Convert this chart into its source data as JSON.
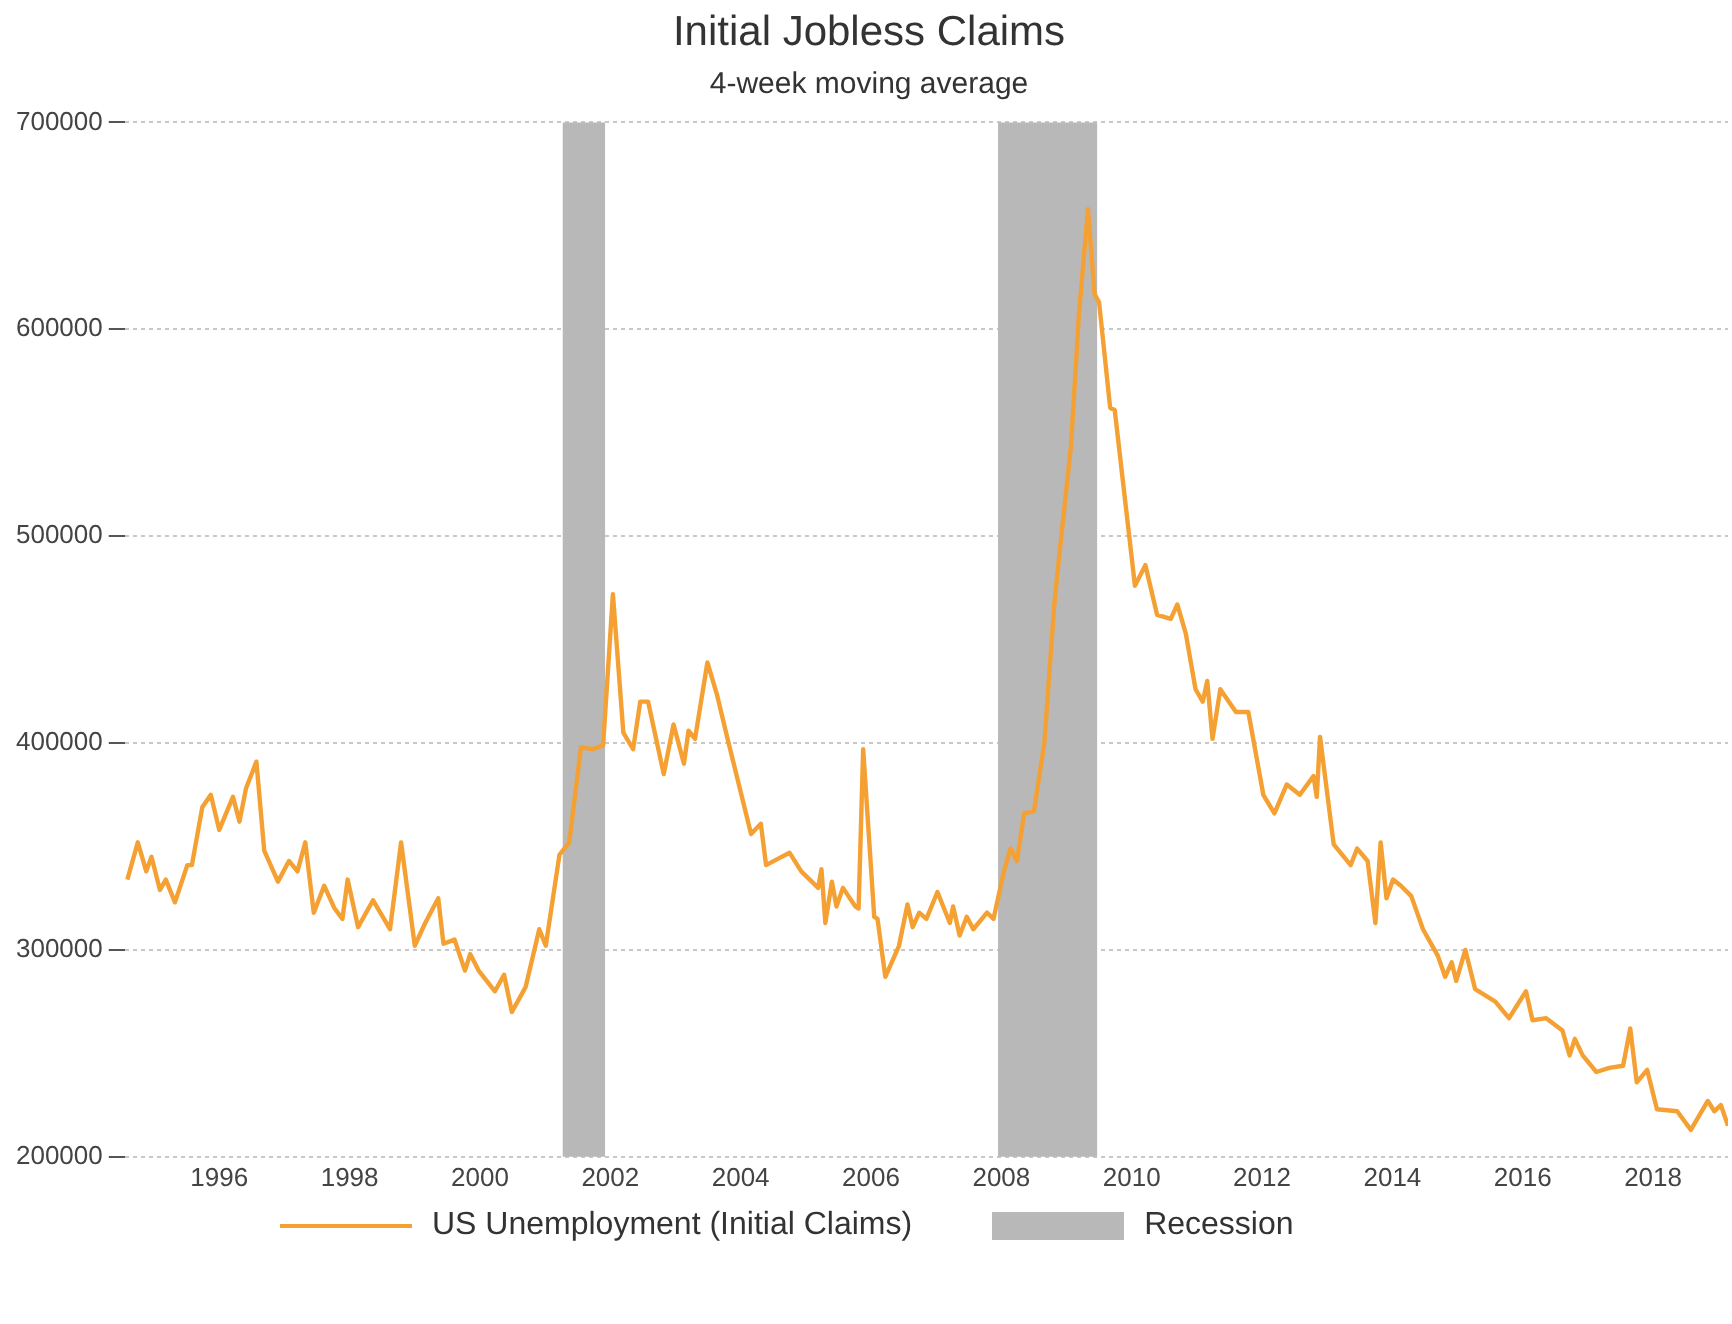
{
  "chart_data": {
    "type": "line",
    "title": "Initial Jobless Claims",
    "subtitle": "4-week moving average",
    "xlim": [
      1994.55,
      2019.15
    ],
    "xticks": [
      1996,
      1998,
      2000,
      2002,
      2004,
      2006,
      2008,
      2010,
      2012,
      2014,
      2016,
      2018
    ],
    "ylim": [
      200000,
      700000
    ],
    "yticks": [
      200000,
      300000,
      400000,
      500000,
      600000,
      700000
    ],
    "grid": "y",
    "legend": "bottom",
    "marker": "none",
    "line_style": "solid",
    "bands": [
      {
        "axis": "x",
        "from": 2001.27,
        "to": 2001.92,
        "label": "Recession",
        "color": "#b8b8b8"
      },
      {
        "axis": "x",
        "from": 2007.95,
        "to": 2009.47,
        "color": "#b8b8b8"
      }
    ],
    "series": [
      {
        "name": "US Unemployment (Initial Claims)",
        "color": "#f5a032",
        "x": [
          1994.59,
          1994.75,
          1994.88,
          1994.96,
          1995.09,
          1995.18,
          1995.32,
          1995.51,
          1995.58,
          1995.74,
          1995.87,
          1996.0,
          1996.21,
          1996.31,
          1996.41,
          1996.57,
          1996.69,
          1996.9,
          1997.07,
          1997.2,
          1997.32,
          1997.45,
          1997.61,
          1997.77,
          1997.89,
          1997.97,
          1998.13,
          1998.36,
          1998.62,
          1998.79,
          1999.0,
          1999.16,
          1999.36,
          1999.44,
          1999.61,
          1999.77,
          1999.85,
          1999.98,
          2000.23,
          2000.37,
          2000.49,
          2000.7,
          2000.91,
          2001.01,
          2001.22,
          2001.37,
          2001.55,
          2001.73,
          2001.89,
          2002.04,
          2002.2,
          2002.35,
          2002.46,
          2002.58,
          2002.82,
          2002.97,
          2003.13,
          2003.2,
          2003.3,
          2003.49,
          2003.64,
          2003.8,
          2004.16,
          2004.31,
          2004.39,
          2004.57,
          2004.75,
          2004.93,
          2005.19,
          2005.24,
          2005.3,
          2005.4,
          2005.47,
          2005.57,
          2005.76,
          2005.81,
          2005.88,
          2006.05,
          2006.1,
          2006.22,
          2006.43,
          2006.56,
          2006.64,
          2006.74,
          2006.85,
          2007.02,
          2007.21,
          2007.26,
          2007.36,
          2007.47,
          2007.57,
          2007.78,
          2007.88,
          2008.04,
          2008.14,
          2008.24,
          2008.35,
          2008.5,
          2008.66,
          2008.81,
          2008.86,
          2009.07,
          2009.19,
          2009.33,
          2009.43,
          2009.5,
          2009.67,
          2009.74,
          2010.05,
          2010.21,
          2010.39,
          2010.6,
          2010.7,
          2010.83,
          2010.98,
          2011.09,
          2011.16,
          2011.24,
          2011.36,
          2011.6,
          2011.79,
          2012.02,
          2012.19,
          2012.38,
          2012.58,
          2012.79,
          2012.84,
          2012.89,
          2013.1,
          2013.36,
          2013.46,
          2013.62,
          2013.74,
          2013.82,
          2013.91,
          2014.01,
          2014.13,
          2014.29,
          2014.47,
          2014.7,
          2014.81,
          2014.91,
          2014.98,
          2015.12,
          2015.27,
          2015.58,
          2015.79,
          2016.05,
          2016.15,
          2016.36,
          2016.61,
          2016.72,
          2016.8,
          2016.92,
          2017.13,
          2017.33,
          2017.54,
          2017.65,
          2017.75,
          2017.91,
          2018.06,
          2018.37,
          2018.58,
          2018.84,
          2018.94,
          2019.04,
          2019.15
        ],
        "values": [
          334000,
          352000,
          338000,
          345000,
          329000,
          334000,
          323000,
          341000,
          341000,
          369000,
          375000,
          358000,
          374000,
          362000,
          378000,
          391000,
          348000,
          333000,
          343000,
          338000,
          352000,
          318000,
          331000,
          320000,
          315000,
          334000,
          311000,
          324000,
          310000,
          352000,
          302000,
          313000,
          325000,
          303000,
          305000,
          290000,
          298000,
          290000,
          280000,
          288000,
          270000,
          282000,
          310000,
          302000,
          346000,
          352000,
          398000,
          397000,
          399000,
          472000,
          405000,
          397000,
          420000,
          420000,
          385000,
          409000,
          390000,
          406000,
          402000,
          439000,
          423000,
          402000,
          356000,
          361000,
          341000,
          344000,
          347000,
          338000,
          330000,
          339000,
          313000,
          333000,
          321000,
          330000,
          321000,
          320000,
          397000,
          316000,
          315000,
          287000,
          302000,
          322000,
          311000,
          318000,
          315000,
          328000,
          313000,
          321000,
          307000,
          316000,
          310000,
          318000,
          315000,
          338000,
          349000,
          343000,
          366000,
          367000,
          400000,
          466000,
          482000,
          544000,
          607000,
          658000,
          617000,
          613000,
          562000,
          561000,
          476000,
          486000,
          462000,
          460000,
          467000,
          453000,
          426000,
          420000,
          430000,
          402000,
          426000,
          415000,
          415000,
          375000,
          366000,
          380000,
          375000,
          384000,
          374000,
          403000,
          351000,
          341000,
          349000,
          343000,
          313000,
          352000,
          325000,
          334000,
          331000,
          326000,
          310000,
          297000,
          287000,
          294000,
          285000,
          300000,
          281000,
          275000,
          267000,
          280000,
          266000,
          267000,
          261000,
          249000,
          257000,
          249000,
          241000,
          243000,
          244000,
          262000,
          236000,
          242000,
          223000,
          222000,
          213000,
          227000,
          222000,
          225000,
          215000
        ]
      }
    ]
  }
}
